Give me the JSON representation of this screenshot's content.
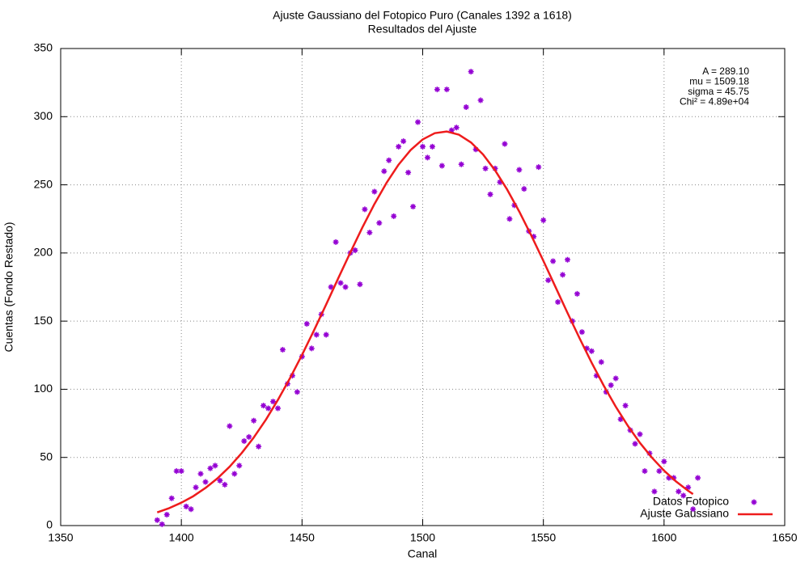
{
  "chart_data": {
    "type": "scatter",
    "title": "Ajuste Gaussiano del Fotopico Puro (Canales 1392 a 1618)",
    "subtitle": "Resultados del Ajuste",
    "x_label": "Canal",
    "y_label": "Cuentas (Fondo Restado)",
    "annotations": [
      "A = 289.10",
      "mu = 1509.18",
      "sigma = 45.75",
      "Chi² = 4.89e+04"
    ],
    "xlim": [
      1350,
      1650
    ],
    "ylim": [
      0,
      350
    ],
    "xticks": [
      1350,
      1400,
      1450,
      1500,
      1550,
      1600,
      1650
    ],
    "yticks": [
      0,
      50,
      100,
      150,
      200,
      250,
      300,
      350
    ],
    "grid": true,
    "legend": "bottom-right",
    "series": [
      {
        "name": "Datos Fotopico",
        "color": "#9400d3",
        "type": "scatter",
        "x": [
          1390,
          1392,
          1394,
          1396,
          1398,
          1400,
          1402,
          1404,
          1406,
          1408,
          1410,
          1412,
          1414,
          1416,
          1418,
          1420,
          1422,
          1424,
          1426,
          1428,
          1430,
          1432,
          1434,
          1436,
          1438,
          1440,
          1442,
          1444,
          1446,
          1448,
          1450,
          1452,
          1454,
          1456,
          1458,
          1460,
          1462,
          1464,
          1466,
          1468,
          1470,
          1472,
          1474,
          1476,
          1478,
          1480,
          1482,
          1484,
          1486,
          1488,
          1490,
          1492,
          1494,
          1496,
          1498,
          1500,
          1502,
          1504,
          1506,
          1508,
          1510,
          1512,
          1514,
          1516,
          1518,
          1520,
          1522,
          1524,
          1526,
          1528,
          1530,
          1532,
          1534,
          1536,
          1538,
          1540,
          1542,
          1544,
          1546,
          1548,
          1550,
          1552,
          1554,
          1556,
          1558,
          1560,
          1562,
          1564,
          1566,
          1568,
          1570,
          1572,
          1574,
          1576,
          1578,
          1580,
          1582,
          1584,
          1586,
          1588,
          1590,
          1592,
          1594,
          1596,
          1598,
          1600,
          1602,
          1604,
          1606,
          1608,
          1610,
          1612,
          1614
        ],
        "values": [
          4,
          1,
          8,
          20,
          40,
          40,
          14,
          12,
          28,
          38,
          32,
          42,
          44,
          33,
          30,
          73,
          38,
          44,
          62,
          65,
          77,
          58,
          88,
          86,
          91,
          86,
          129,
          104,
          110,
          98,
          124,
          148,
          130,
          140,
          155,
          140,
          175,
          208,
          178,
          175,
          200,
          202,
          177,
          232,
          215,
          245,
          222,
          260,
          268,
          227,
          278,
          282,
          259,
          234,
          296,
          278,
          270,
          278,
          320,
          264,
          320,
          290,
          292,
          265,
          307,
          333,
          276,
          312,
          262,
          243,
          262,
          252,
          280,
          225,
          235,
          261,
          247,
          216,
          212,
          263,
          224,
          180,
          194,
          164,
          184,
          195,
          150,
          170,
          142,
          130,
          128,
          110,
          120,
          98,
          103,
          108,
          78,
          88,
          70,
          60,
          67,
          40,
          53,
          25,
          40,
          47,
          35,
          35,
          25,
          22,
          28,
          12,
          35
        ]
      },
      {
        "name": "Ajuste Gaussiano",
        "color": "#ee1c1c",
        "type": "line",
        "x": [
          1390,
          1395,
          1400,
          1405,
          1410,
          1415,
          1420,
          1425,
          1430,
          1435,
          1440,
          1445,
          1450,
          1455,
          1460,
          1465,
          1470,
          1475,
          1480,
          1485,
          1490,
          1495,
          1500,
          1505,
          1510,
          1515,
          1520,
          1525,
          1530,
          1535,
          1540,
          1545,
          1550,
          1555,
          1560,
          1565,
          1570,
          1575,
          1580,
          1585,
          1590,
          1595,
          1600,
          1605,
          1610,
          1612
        ],
        "values": [
          9.7,
          12.8,
          16.8,
          21.6,
          27.6,
          34.7,
          43.2,
          53.2,
          64.6,
          77.6,
          92.2,
          108.1,
          125.2,
          143.4,
          162.2,
          181.4,
          200.3,
          218.7,
          235.9,
          251.4,
          264.8,
          275.5,
          283.3,
          287.9,
          289.1,
          286.8,
          281.1,
          272.3,
          260.6,
          246.5,
          230.4,
          212.8,
          194.2,
          175.1,
          156.0,
          137.4,
          119.5,
          102.7,
          87.2,
          73.2,
          60.7,
          49.8,
          40.3,
          32.3,
          25.5,
          23.1
        ]
      }
    ]
  }
}
